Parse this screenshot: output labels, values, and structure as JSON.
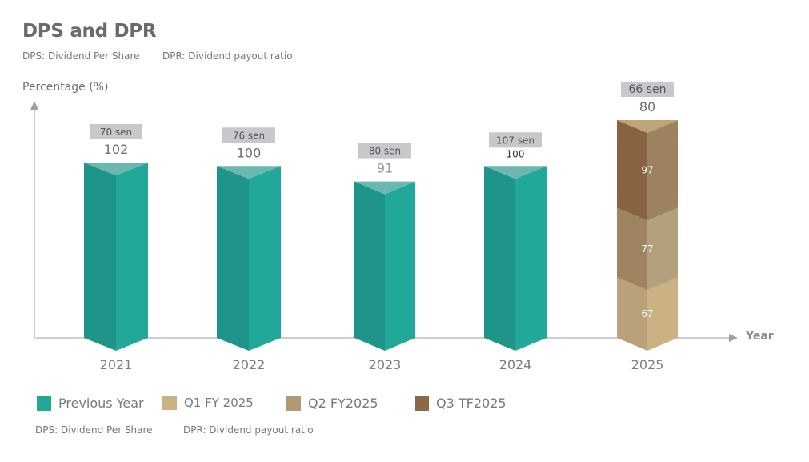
{
  "header": {
    "title": "DPS and DPR",
    "subtitle_dps": "DPS: Dividend Per Share",
    "subtitle_dpr": "DPR: Dividend payout ratio"
  },
  "footer": {
    "dps": "DPS: Dividend Per Share",
    "dpr": "DPR: Dividend payout ratio"
  },
  "colors": {
    "teal_left": "#1f9488",
    "teal_right": "#22a898",
    "teal_top": "#6ab8b0",
    "q1": "#cbb285",
    "q2": "#b09a74",
    "q3": "#8a6a45",
    "badge": "#c8c8cc",
    "axis": "#cfcfcf"
  },
  "chart_data": {
    "type": "bar",
    "title": "DPS and DPR",
    "xlabel": "Year",
    "ylabel": "Percentage (%)",
    "categories": [
      "2021",
      "2022",
      "2023",
      "2024",
      "2025"
    ],
    "series": [
      {
        "name": "Previous Year",
        "values": [
          102,
          100,
          91,
          100,
          null
        ]
      },
      {
        "name": "Q1 FY 2025",
        "values": [
          null,
          null,
          null,
          null,
          67
        ]
      },
      {
        "name": "Q2 FY2025",
        "values": [
          null,
          null,
          null,
          null,
          77
        ]
      },
      {
        "name": "Q3 TF2025",
        "values": [
          null,
          null,
          null,
          null,
          97
        ]
      }
    ],
    "dpr_labels": [
      "102",
      "100",
      "91",
      "100",
      "80"
    ],
    "dps_labels": [
      "70 sen",
      "76 sen",
      "80 sen",
      "107 sen",
      "66 sen"
    ],
    "legend": [
      "Previous Year",
      "Q1 FY 2025",
      "Q2 FY2025",
      "Q3 TF2025"
    ],
    "legend_position": "bottom-left",
    "grid": false
  }
}
